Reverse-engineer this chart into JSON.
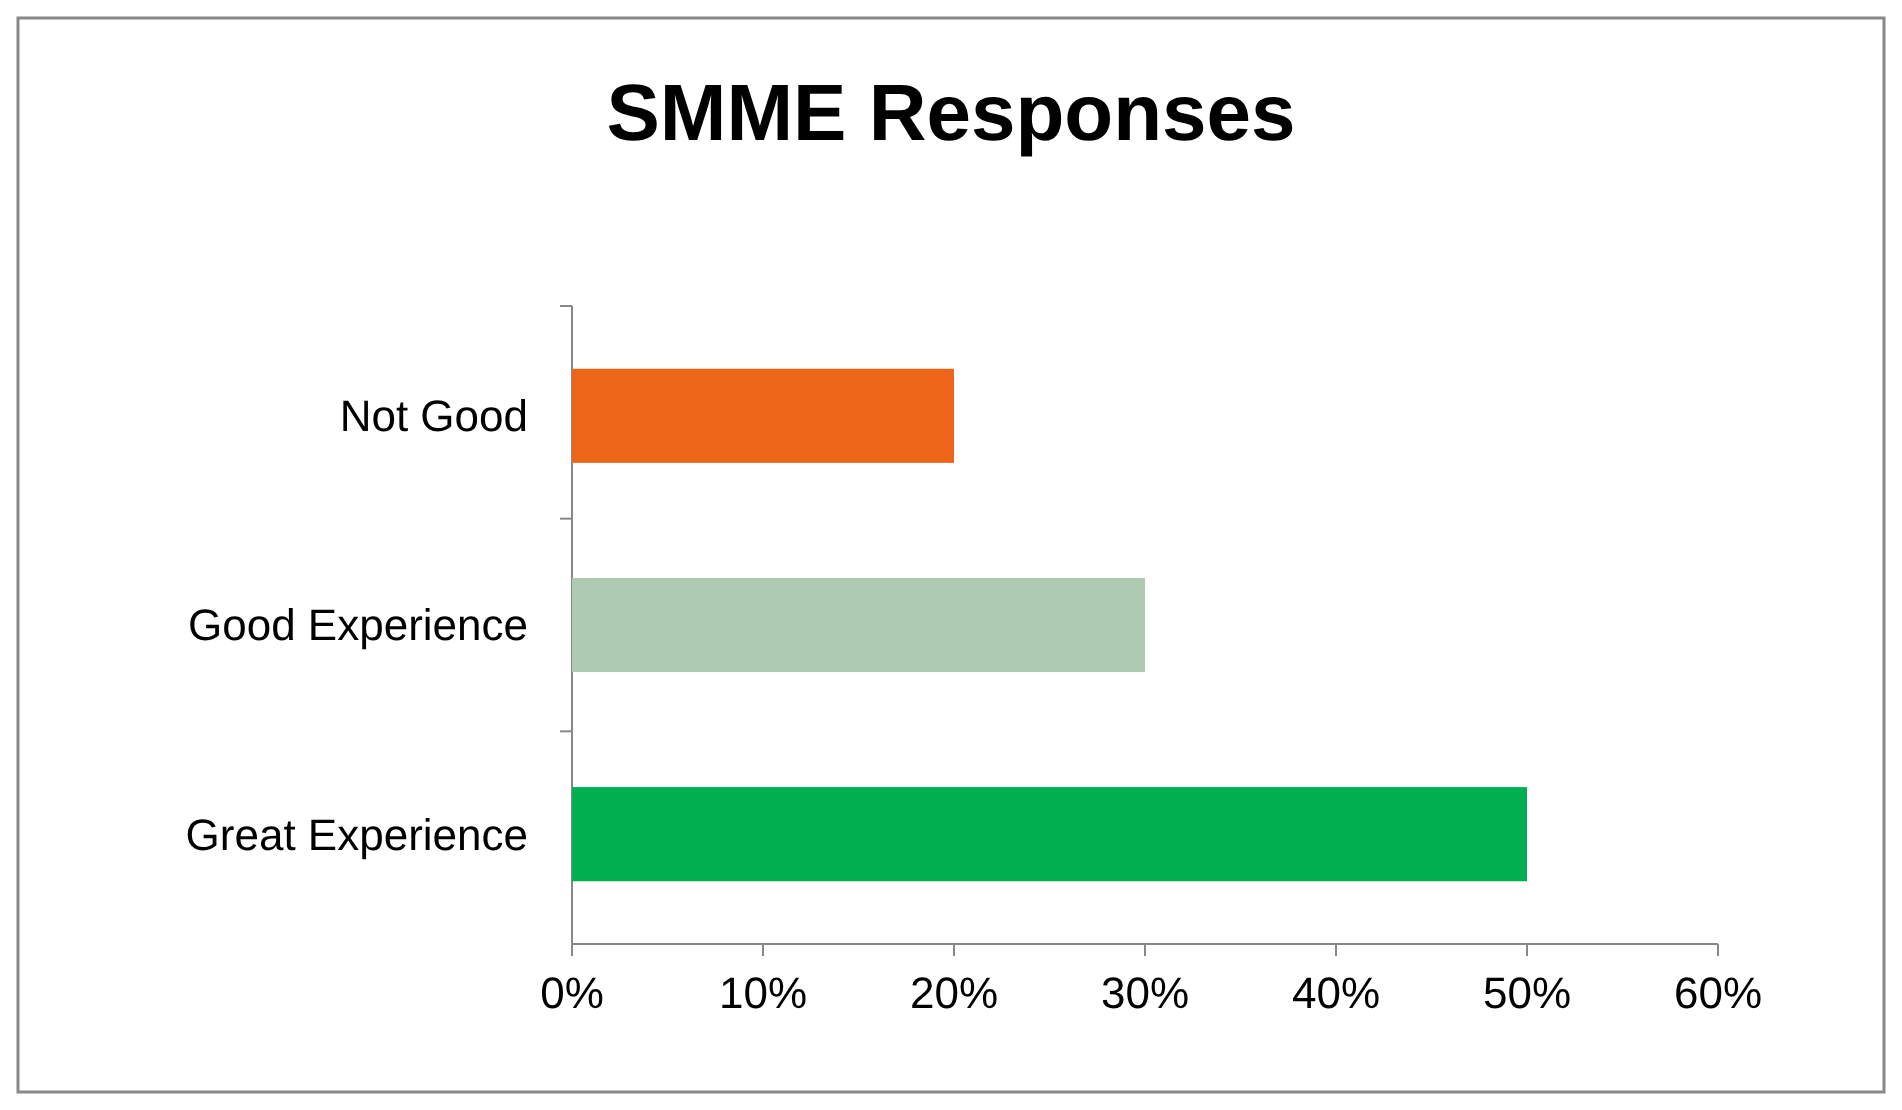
{
  "chart_data": {
    "type": "bar",
    "orientation": "horizontal",
    "title": "SMME Responses",
    "categories": [
      "Not Good",
      "Good Experience",
      "Great Experience"
    ],
    "values": [
      20,
      30,
      50
    ],
    "colors": [
      "#ec6519",
      "#aecbb2",
      "#00b050"
    ],
    "xlim": [
      0,
      60
    ],
    "xticks": [
      {
        "value": 0,
        "label": "0%"
      },
      {
        "value": 10,
        "label": "10%"
      },
      {
        "value": 20,
        "label": "20%"
      },
      {
        "value": 30,
        "label": "30%"
      },
      {
        "value": 40,
        "label": "40%"
      },
      {
        "value": 50,
        "label": "50%"
      },
      {
        "value": 60,
        "label": "60%"
      }
    ],
    "grid": false
  }
}
